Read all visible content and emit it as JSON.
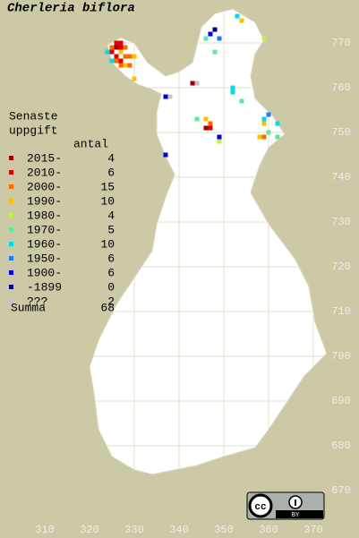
{
  "title": "Cherleria biflora",
  "legend": {
    "heading": [
      "Senaste",
      "uppgift"
    ],
    "count_header": "antal",
    "items": [
      {
        "label": "2015-",
        "count": 4,
        "color": "#9a0000"
      },
      {
        "label": "2010-",
        "count": 6,
        "color": "#e00000"
      },
      {
        "label": "2000-",
        "count": 15,
        "color": "#ff6a00"
      },
      {
        "label": "1990-",
        "count": 10,
        "color": "#ffc000"
      },
      {
        "label": "1980-",
        "count": 4,
        "color": "#c4f040"
      },
      {
        "label": "1970-",
        "count": 5,
        "color": "#60e8a0"
      },
      {
        "label": "1960-",
        "count": 10,
        "color": "#00dce8"
      },
      {
        "label": "1950-",
        "count": 6,
        "color": "#1880ff"
      },
      {
        "label": "1900-",
        "count": 6,
        "color": "#0000e0"
      },
      {
        "label": "-1899",
        "count": 0,
        "color": "#000080"
      },
      {
        "label": "???",
        "count": 2,
        "color": "#c4c4c4"
      }
    ],
    "total": {
      "label": "Summa",
      "value": 68
    }
  },
  "axes": {
    "xlim": [
      300,
      380
    ],
    "ylim": [
      660,
      780
    ],
    "xticks": [
      310,
      320,
      330,
      340,
      350,
      360,
      370
    ],
    "yticks": [
      670,
      680,
      690,
      700,
      710,
      720,
      730,
      740,
      750,
      760,
      770
    ]
  },
  "observations": [
    [
      327,
      770,
      1
    ],
    [
      326,
      770,
      1
    ],
    [
      325,
      769,
      2
    ],
    [
      326,
      769,
      0
    ],
    [
      327,
      769,
      1
    ],
    [
      328,
      769,
      2
    ],
    [
      324,
      768,
      6
    ],
    [
      325,
      768,
      1
    ],
    [
      326,
      767,
      1
    ],
    [
      327,
      768,
      3
    ],
    [
      328,
      767,
      2
    ],
    [
      329,
      767,
      2
    ],
    [
      330,
      767,
      3
    ],
    [
      326,
      766,
      2
    ],
    [
      327,
      765,
      2
    ],
    [
      328,
      765,
      3
    ],
    [
      325,
      766,
      6
    ],
    [
      327,
      766,
      1
    ],
    [
      329,
      765,
      2
    ],
    [
      330,
      762,
      3
    ],
    [
      353,
      776,
      6
    ],
    [
      354,
      775,
      3
    ],
    [
      348,
      773,
      9
    ],
    [
      347,
      772,
      8
    ],
    [
      346,
      771,
      5
    ],
    [
      349,
      771,
      7
    ],
    [
      348,
      768,
      5
    ],
    [
      359,
      771,
      4
    ],
    [
      343,
      761,
      0
    ],
    [
      344,
      761,
      10
    ],
    [
      337,
      758,
      8
    ],
    [
      338,
      758,
      10
    ],
    [
      352,
      760,
      6
    ],
    [
      352,
      759,
      6
    ],
    [
      354,
      757,
      5
    ],
    [
      346,
      753,
      3
    ],
    [
      344,
      753,
      5
    ],
    [
      347,
      752,
      2
    ],
    [
      346,
      751,
      0
    ],
    [
      347,
      751,
      1
    ],
    [
      349,
      749,
      8
    ],
    [
      349,
      748,
      4
    ],
    [
      359,
      753,
      6
    ],
    [
      360,
      754,
      7
    ],
    [
      362,
      752,
      6
    ],
    [
      358,
      749,
      3
    ],
    [
      359,
      749,
      2
    ],
    [
      360,
      750,
      5
    ],
    [
      337,
      745,
      8
    ],
    [
      362,
      749,
      5
    ],
    [
      359,
      752,
      3
    ]
  ],
  "license": {
    "icon": "cc",
    "label": "BY"
  }
}
